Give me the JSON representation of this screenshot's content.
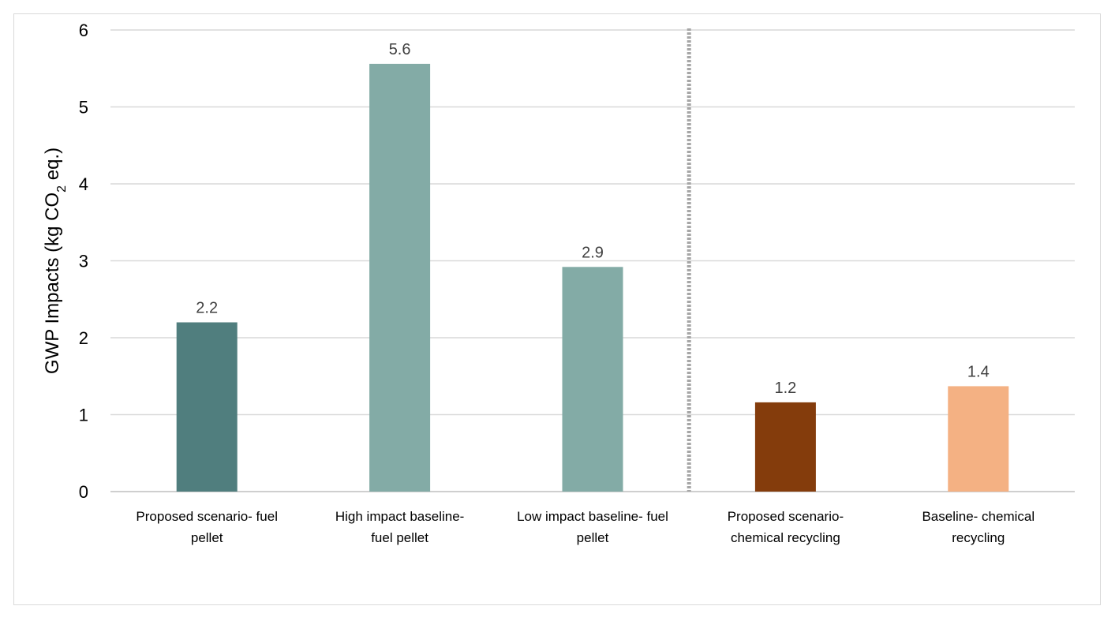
{
  "chart_data": {
    "type": "bar",
    "title": "",
    "xlabel": "",
    "ylabel_parts": {
      "before": "GWP Impacts (kg CO",
      "subscript": "2",
      "after": " eq.)"
    },
    "ylim": [
      0,
      6
    ],
    "yticks": [
      0,
      1,
      2,
      3,
      4,
      5,
      6
    ],
    "grid": true,
    "categories": [
      [
        "Proposed scenario- fuel",
        "pellet"
      ],
      [
        "High impact baseline-",
        "fuel pellet"
      ],
      [
        "Low impact baseline- fuel",
        "pellet"
      ],
      [
        "Proposed scenario-",
        "chemical recycling"
      ],
      [
        "Baseline- chemical",
        "recycling"
      ]
    ],
    "values": [
      2.2,
      5.56,
      2.92,
      1.16,
      1.37
    ],
    "data_labels": [
      "2.2",
      "5.6",
      "2.9",
      "1.2",
      "1.4"
    ],
    "colors": [
      "#507e7e",
      "#83aba6",
      "#83aba6",
      "#843c0c",
      "#f4b183"
    ],
    "divider": {
      "after_category_index": 2,
      "style": "dotted",
      "color": "#a6a6a6"
    }
  }
}
